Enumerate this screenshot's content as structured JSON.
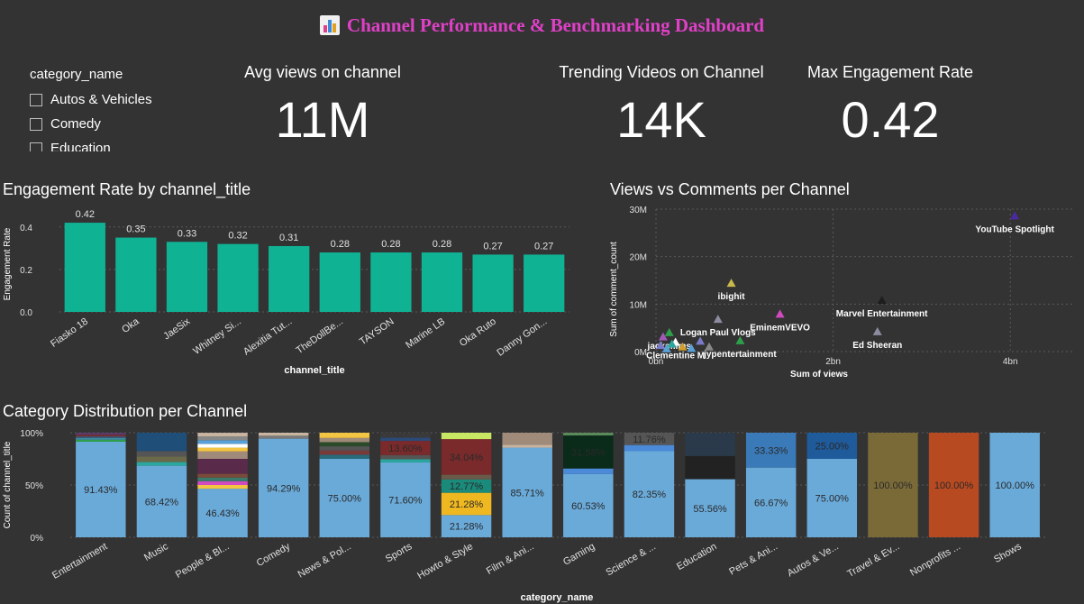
{
  "title": "Channel Performance & Benchmarking Dashboard",
  "slicer": {
    "header": "category_name",
    "items": [
      "Autos & Vehicles",
      "Comedy",
      "Education"
    ]
  },
  "kpis": [
    {
      "title": "Avg views on channel",
      "value": "11M"
    },
    {
      "title": "Trending Videos on Channel",
      "value": "14K"
    },
    {
      "title": "Max Engagement Rate",
      "value": "0.42"
    }
  ],
  "colors": {
    "background": "#333333",
    "title": "#e040c8",
    "bar": "#10b294",
    "stack_base": "#6aaad9"
  },
  "chart_data": [
    {
      "id": "engagement",
      "type": "bar",
      "title": "Engagement Rate by channel_title",
      "xlabel": "channel_title",
      "ylabel": "Engagement Rate",
      "categories": [
        "Fiasko 18",
        "Oka",
        "JaeSix",
        "Whitney Si...",
        "Alexitia Tut...",
        "TheDollBe...",
        "TAYSON",
        "Marine LB",
        "Oka Ruto",
        "Danny Gon..."
      ],
      "values": [
        0.42,
        0.35,
        0.33,
        0.32,
        0.31,
        0.28,
        0.28,
        0.28,
        0.27,
        0.27
      ],
      "data_labels": [
        "0.42",
        "0.35",
        "0.33",
        "0.32",
        "0.31",
        "0.28",
        "0.28",
        "0.28",
        "0.27",
        "0.27"
      ],
      "yticks": [
        "0.0",
        "0.2",
        "0.4"
      ],
      "ytick_values": [
        0,
        0.2,
        0.4
      ],
      "ylim": [
        0,
        0.45
      ],
      "grid": true
    },
    {
      "id": "views_comments",
      "type": "scatter",
      "title": "Views vs Comments per Channel",
      "xlabel": "Sum of views",
      "ylabel": "Sum of comment_count",
      "xticks": [
        "0bn",
        "2bn",
        "4bn"
      ],
      "xtick_values": [
        0,
        2,
        4
      ],
      "yticks": [
        "0M",
        "10M",
        "20M",
        "30M"
      ],
      "ytick_values": [
        0,
        10,
        20,
        30
      ],
      "xlim": [
        0,
        4.7
      ],
      "ylim": [
        0,
        30
      ],
      "grid": true,
      "points": [
        {
          "label": "YouTube Spotlight",
          "x": 4.05,
          "y": 28.6,
          "color": "#4b2aa0"
        },
        {
          "label": "ibighit",
          "x": 0.85,
          "y": 14.4,
          "color": "#c9b94a"
        },
        {
          "label": "Logan Paul Vlogs",
          "x": 0.7,
          "y": 6.8,
          "color": "#8c8ca0"
        },
        {
          "label": "Marvel Entertainment",
          "x": 2.55,
          "y": 10.8,
          "color": "#1d1d1d"
        },
        {
          "label": "EminemVEVO",
          "x": 1.4,
          "y": 7.9,
          "color": "#d24ac0"
        },
        {
          "label": "jypentertainment",
          "x": 0.95,
          "y": 2.3,
          "color": "#2ea04a"
        },
        {
          "label": "Ed Sheeran",
          "x": 2.5,
          "y": 4.2,
          "color": "#8c8ca0"
        },
        {
          "label": "jacksfilms",
          "x": 0.15,
          "y": 4.0,
          "color": "#2ea04a"
        },
        {
          "label": "Clementine M",
          "x": 0.22,
          "y": 2.0,
          "color": "#ffffff"
        },
        {
          "label": "",
          "x": 0.05,
          "y": 1.3,
          "color": "#7a7ac8"
        },
        {
          "label": "",
          "x": 0.12,
          "y": 0.6,
          "color": "#5aa0d8"
        },
        {
          "label": "",
          "x": 0.3,
          "y": 1.0,
          "color": "#d2a02a"
        },
        {
          "label": "",
          "x": 0.5,
          "y": 2.2,
          "color": "#7a7ac8"
        },
        {
          "label": "",
          "x": 0.6,
          "y": 1.0,
          "color": "#888888"
        },
        {
          "label": "",
          "x": 0.08,
          "y": 3.1,
          "color": "#a05ab4"
        },
        {
          "label": "",
          "x": 0.18,
          "y": 1.6,
          "color": "#2aa8a0"
        },
        {
          "label": "",
          "x": 0.4,
          "y": 0.7,
          "color": "#5aa0d8"
        }
      ]
    },
    {
      "id": "category_distribution",
      "type": "bar",
      "stacked": true,
      "title": "Category Distribution per Channel",
      "xlabel": "category_name",
      "ylabel": "Count of channel_title",
      "yticks": [
        "0%",
        "50%",
        "100%"
      ],
      "ytick_values": [
        0,
        50,
        100
      ],
      "categories": [
        "Entertainment",
        "Music",
        "People & Bl...",
        "Comedy",
        "News & Pol...",
        "Sports",
        "Howto & Style",
        "Film & Ani...",
        "Gaming",
        "Science & ...",
        "Education",
        "Pets & Ani...",
        "Autos & Ve...",
        "Travel & Ev...",
        "Nonprofits ...",
        "Shows"
      ],
      "bars": [
        {
          "segments": [
            {
              "value": 91.43,
              "label": "91.43%",
              "color": "#6aaad9"
            },
            {
              "value": 1.8,
              "label": "",
              "color": "#2ea04a"
            },
            {
              "value": 1.8,
              "label": "",
              "color": "#3c8ca0"
            },
            {
              "value": 1.5,
              "label": "",
              "color": "#3a5a7a"
            },
            {
              "value": 1.5,
              "label": "",
              "color": "#7a2a2a"
            },
            {
              "value": 1.97,
              "label": "",
              "color": "#5a3a6a"
            }
          ]
        },
        {
          "segments": [
            {
              "value": 68.42,
              "label": "68.42%",
              "color": "#6aaad9"
            },
            {
              "value": 3.5,
              "label": "",
              "color": "#2aa8a0"
            },
            {
              "value": 5.26,
              "label": "",
              "color": "#6a6a4a"
            },
            {
              "value": 5.26,
              "label": "",
              "color": "#555555"
            },
            {
              "value": 17.56,
              "label": "",
              "color": "#1f4e79"
            }
          ]
        },
        {
          "segments": [
            {
              "value": 46.43,
              "label": "46.43%",
              "color": "#6aaad9"
            },
            {
              "value": 3.57,
              "label": "",
              "color": "#f4c542"
            },
            {
              "value": 3.57,
              "label": "",
              "color": "#d24ac0"
            },
            {
              "value": 3.57,
              "label": "",
              "color": "#3a7a6a"
            },
            {
              "value": 3.57,
              "label": "",
              "color": "#7a4a3a"
            },
            {
              "value": 14.29,
              "label": "",
              "color": "#5a2a4a"
            },
            {
              "value": 7.14,
              "label": "",
              "color": "#a08a7a"
            },
            {
              "value": 3.57,
              "label": "",
              "color": "#f4c542"
            },
            {
              "value": 3.57,
              "label": "",
              "color": "#ffffff"
            },
            {
              "value": 3.57,
              "label": "",
              "color": "#5aa0d8"
            },
            {
              "value": 3.57,
              "label": "",
              "color": "#888888"
            },
            {
              "value": 3.55,
              "label": "",
              "color": "#c8b4a0"
            }
          ]
        },
        {
          "segments": [
            {
              "value": 94.29,
              "label": "94.29%",
              "color": "#6aaad9"
            },
            {
              "value": 2.86,
              "label": "",
              "color": "#7a7a7a"
            },
            {
              "value": 2.85,
              "label": "",
              "color": "#c8b4a0"
            }
          ]
        },
        {
          "segments": [
            {
              "value": 75.0,
              "label": "75.00%",
              "color": "#6aaad9"
            },
            {
              "value": 4.0,
              "label": "",
              "color": "#2a6a7a"
            },
            {
              "value": 4.0,
              "label": "",
              "color": "#7a3a3a"
            },
            {
              "value": 4.0,
              "label": "",
              "color": "#555555"
            },
            {
              "value": 4.0,
              "label": "",
              "color": "#2a4a2a"
            },
            {
              "value": 4.0,
              "label": "",
              "color": "#a08a7a"
            },
            {
              "value": 5.0,
              "label": "",
              "color": "#f4c542"
            }
          ]
        },
        {
          "segments": [
            {
              "value": 71.6,
              "label": "71.60%",
              "color": "#6aaad9"
            },
            {
              "value": 3.0,
              "label": "",
              "color": "#2aa8a0"
            },
            {
              "value": 4.0,
              "label": "",
              "color": "#555555"
            },
            {
              "value": 13.6,
              "label": "13.60%",
              "color": "#7a2a2a"
            },
            {
              "value": 3.0,
              "label": "",
              "color": "#2a4a7a"
            },
            {
              "value": 4.8,
              "label": "",
              "color": "#3a3a3a"
            }
          ]
        },
        {
          "segments": [
            {
              "value": 21.28,
              "label": "21.28%",
              "color": "#6aaad9"
            },
            {
              "value": 21.28,
              "label": "21.28%",
              "color": "#f0b820"
            },
            {
              "value": 12.77,
              "label": "12.77%",
              "color": "#1a8a7a"
            },
            {
              "value": 4.5,
              "label": "",
              "color": "#6a5a4a"
            },
            {
              "value": 34.04,
              "label": "34.04%",
              "color": "#7a2a2a"
            },
            {
              "value": 6.13,
              "label": "",
              "color": "#c8e864"
            }
          ]
        },
        {
          "segments": [
            {
              "value": 85.71,
              "label": "85.71%",
              "color": "#6aaad9"
            },
            {
              "value": 2.86,
              "label": "",
              "color": "#c8b4a0"
            },
            {
              "value": 11.43,
              "label": "",
              "color": "#a08a7a"
            }
          ]
        },
        {
          "segments": [
            {
              "value": 60.53,
              "label": "60.53%",
              "color": "#6aaad9"
            },
            {
              "value": 5.26,
              "label": "",
              "color": "#4a8ad8"
            },
            {
              "value": 31.58,
              "label": "31.58%",
              "color": "#0a2a1a"
            },
            {
              "value": 2.63,
              "label": "",
              "color": "#5a8a5a"
            }
          ]
        },
        {
          "segments": [
            {
              "value": 82.35,
              "label": "82.35%",
              "color": "#6aaad9"
            },
            {
              "value": 5.89,
              "label": "",
              "color": "#4a8ad8"
            },
            {
              "value": 11.76,
              "label": "11.76%",
              "color": "#555555"
            }
          ]
        },
        {
          "segments": [
            {
              "value": 55.56,
              "label": "55.56%",
              "color": "#6aaad9"
            },
            {
              "value": 22.22,
              "label": "",
              "color": "#222222"
            },
            {
              "value": 22.22,
              "label": "",
              "color": "#2a3a4a"
            }
          ]
        },
        {
          "segments": [
            {
              "value": 66.67,
              "label": "66.67%",
              "color": "#6aaad9"
            },
            {
              "value": 33.33,
              "label": "33.33%",
              "color": "#3a7ab8"
            }
          ]
        },
        {
          "segments": [
            {
              "value": 75.0,
              "label": "75.00%",
              "color": "#6aaad9"
            },
            {
              "value": 25.0,
              "label": "25.00%",
              "color": "#1f5a9a"
            }
          ]
        },
        {
          "segments": [
            {
              "value": 100.0,
              "label": "100.00%",
              "color": "#7a6a38"
            }
          ]
        },
        {
          "segments": [
            {
              "value": 100.0,
              "label": "100.00%",
              "color": "#b84a22"
            }
          ]
        },
        {
          "segments": [
            {
              "value": 100.0,
              "label": "100.00%",
              "color": "#6aaad9"
            }
          ]
        }
      ]
    }
  ]
}
